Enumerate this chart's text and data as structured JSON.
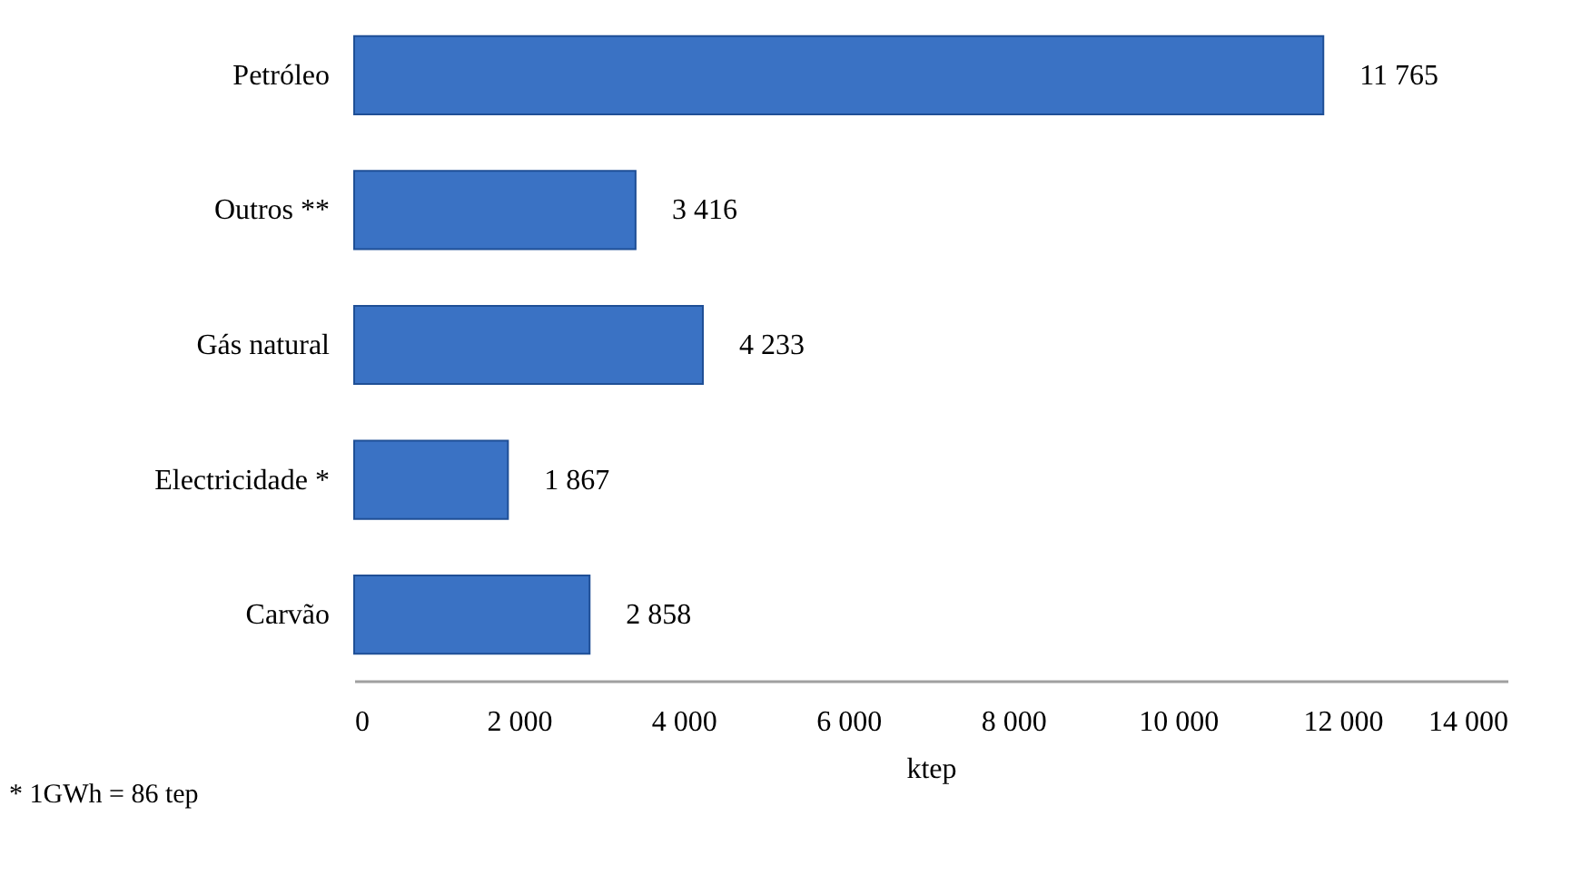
{
  "chart_data": {
    "type": "bar",
    "orientation": "horizontal",
    "xlabel": "ktep",
    "categories": [
      "Petróleo",
      "Outros **",
      "Gás natural",
      "Electricidade *",
      "Carvão"
    ],
    "values": [
      11765,
      3416,
      4233,
      1867,
      2858
    ],
    "value_labels": [
      "11 765",
      "3 416",
      "4 233",
      "1 867",
      "2 858"
    ],
    "color": "#3a72c4",
    "xlim": [
      0,
      14000
    ],
    "xticks": [
      0,
      {
        "value": 2000,
        "label": "2 000"
      },
      {
        "value": 4000,
        "label": "4 000"
      },
      {
        "value": 6000,
        "label": "6 000"
      },
      {
        "value": 8000,
        "label": "8 000"
      },
      {
        "value": 10000,
        "label": "10 000"
      },
      {
        "value": 12000,
        "label": "12 000"
      },
      {
        "value": 14000,
        "label": "14 000"
      }
    ],
    "annotations": [
      "* 1GWh = 86 tep"
    ]
  }
}
